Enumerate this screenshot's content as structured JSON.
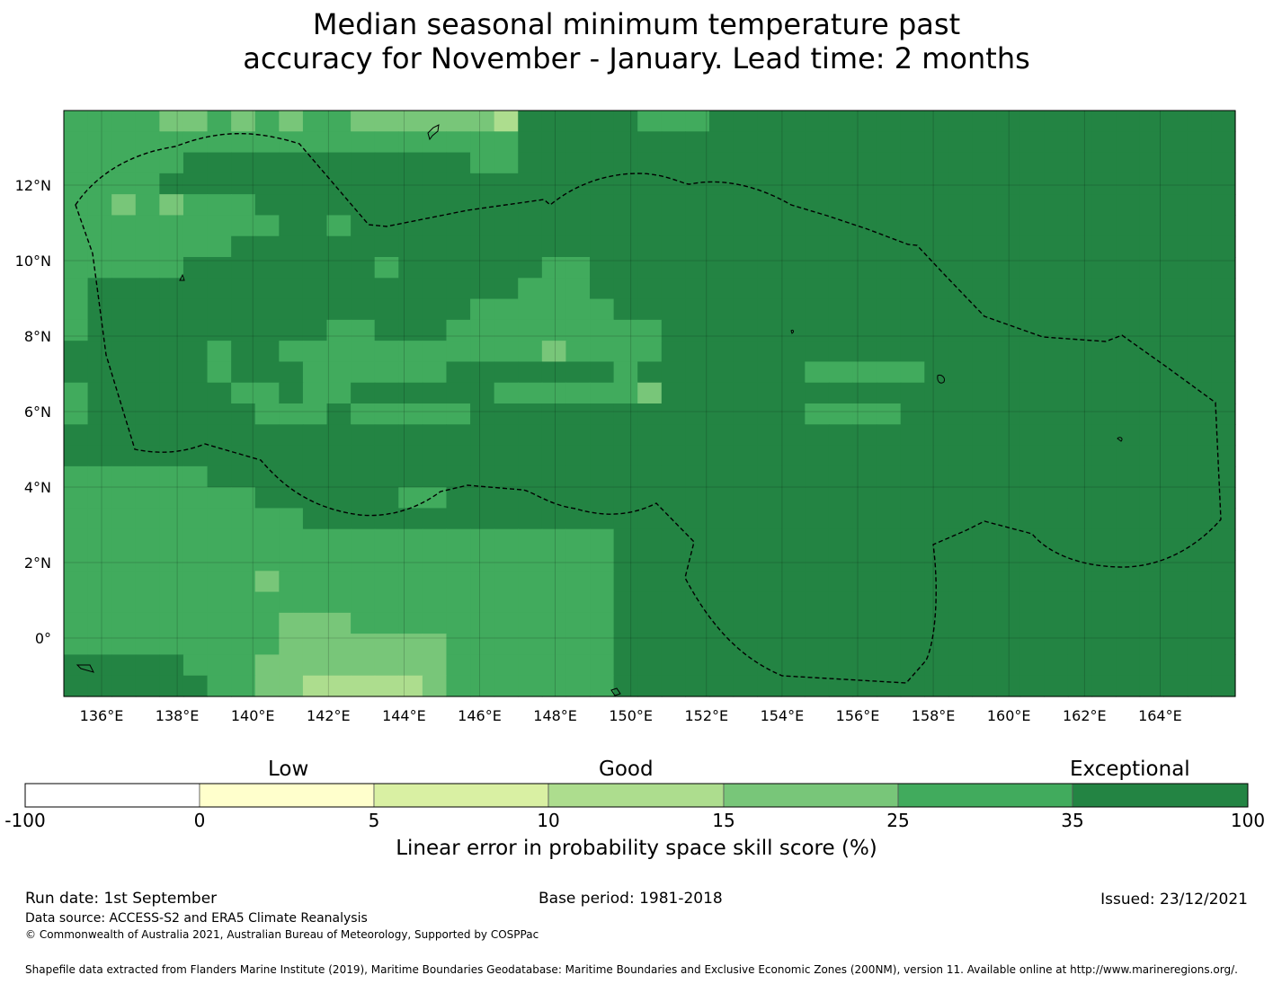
{
  "title_line1": "Median seasonal minimum temperature past",
  "title_line2": "accuracy for November - January. Lead time: 2 months",
  "map": {
    "lon_ticks": [
      "136°E",
      "138°E",
      "140°E",
      "142°E",
      "144°E",
      "146°E",
      "148°E",
      "150°E",
      "152°E",
      "154°E",
      "156°E",
      "158°E",
      "160°E",
      "162°E",
      "164°E"
    ],
    "lat_ticks": [
      "12°N",
      "10°N",
      "8°N",
      "6°N",
      "4°N",
      "2°N",
      "0°"
    ],
    "palette": [
      "#ffffcc",
      "#d9f0a3",
      "#addd8e",
      "#78c679",
      "#41ab5d",
      "#238443"
    ],
    "grid": [
      "4444334343443333332555554445555555555555555555555",
      "4444444444444444444555555555555555555555555555555",
      "4444455555555555544555555555555555555555555555555",
      "4444555555555555555555555555555555555555555555555",
      "4434344455555555555555555555555555555555555555555",
      "4444444445545555555555555555555555555555555555555",
      "4444444555555555555555555555555555555555555555555",
      "4444455555555455555544555555555555555555555555555",
      "4555555555555555555444555555555555555555555555555",
      "4555555555555555544444455555555555555555555555555",
      "4555555555544555444444444555555555555555555555555",
      "5555554554444444444434444555555555555555555555555",
      "5555554555444444555555545555555444445555555555555",
      "4555555445445555554444443555555555555555555555555",
      "4555555544454444455555555555555444455555555555555",
      "5555555555555555555555555555555555555555555555555",
      "5555555555555555555555555555555555555555555555555",
      "4444445555555555555555555555555555555555555555555",
      "4444444455555544555555555555555555555555555555555",
      "4444444444555555555555555555555555555555555555555",
      "4444444444444444444444455555555555555555555555555",
      "4444444444444444444444455555555555555555555555555",
      "4444444434444444444444455555555555555555555555555",
      "4444444444444444444444455555555555555555555555555",
      "4444444443334444444444455555555555555555555555555",
      "4444444443333333444444455555555555555555555555555",
      "5555544433333333444444455555555555555555555555555",
      "5555554433222223444444455555555555555555555555555"
    ]
  },
  "colorbar": {
    "category_labels": [
      "Low",
      "Good",
      "Exceptional"
    ],
    "tick_labels": [
      "-100",
      "0",
      "5",
      "10",
      "15",
      "25",
      "35",
      "100"
    ],
    "colors": [
      "#ffffff",
      "#ffffcc",
      "#d9f0a3",
      "#addd8e",
      "#78c679",
      "#41ab5d",
      "#238443"
    ],
    "label": "Linear error in probability space skill score (%)"
  },
  "footer": {
    "run_date": "Run date: 1st September",
    "base_period": "Base period: 1981-2018",
    "issued": "Issued: 23/12/2021",
    "data_source": "Data source: ACCESS-S2 and ERA5 Climate Reanalysis",
    "copyright": "© Commonwealth of Australia 2021, Australian Bureau of Meteorology, Supported by COSPPac",
    "shapefile_note": "Shapefile data extracted from Flanders Marine Institute (2019), Maritime Boundaries Geodatabase: Maritime Boundaries and Exclusive Economic Zones (200NM), version 11. Available online at http://www.marineregions.org/."
  }
}
